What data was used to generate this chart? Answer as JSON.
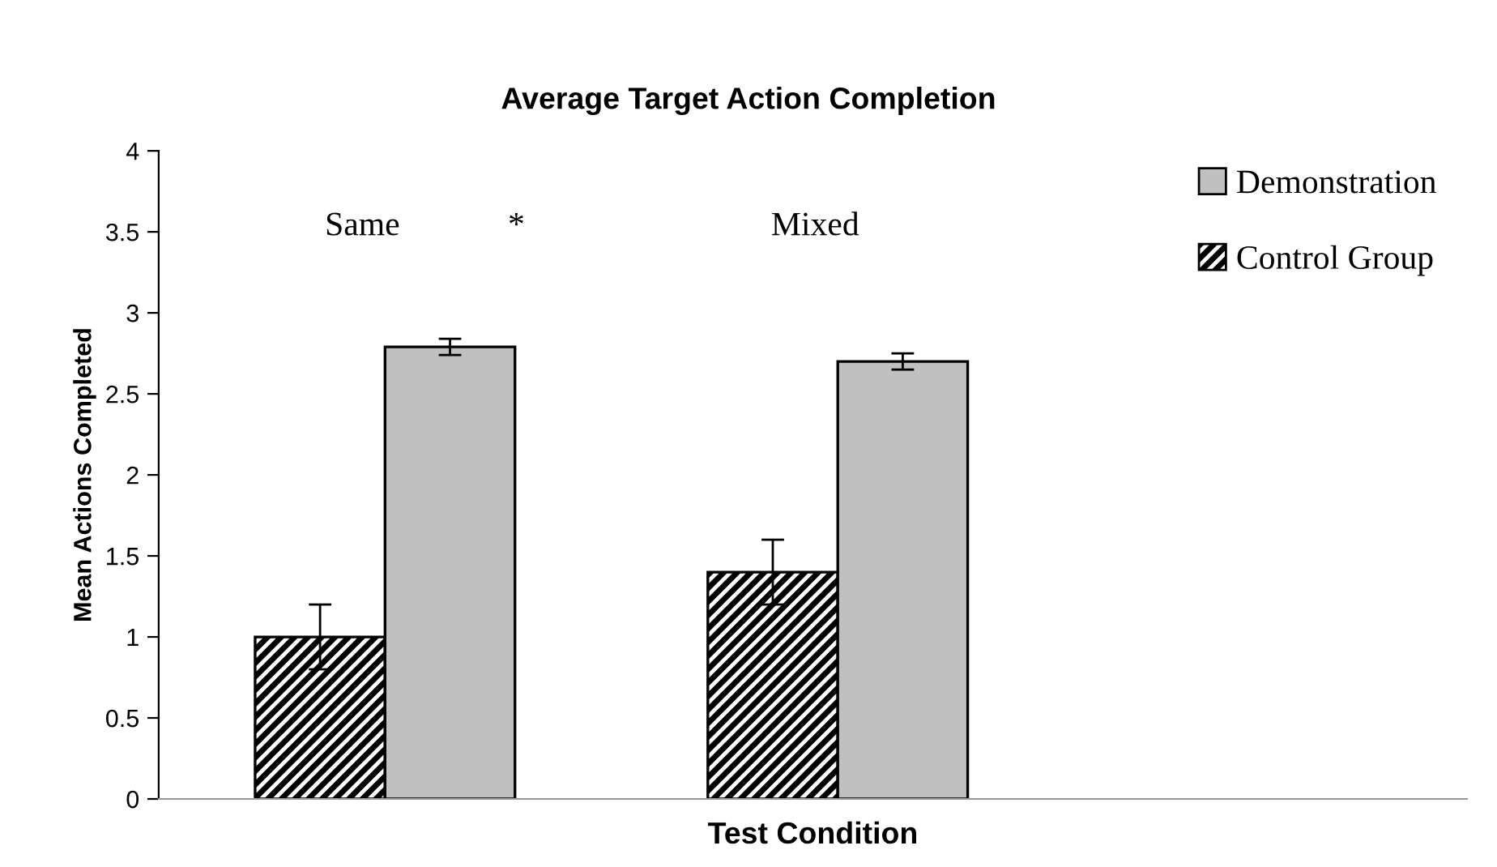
{
  "chart_data": {
    "type": "bar",
    "title": "Average Target Action Completion",
    "xlabel": "Test Condition",
    "ylabel": "Mean Actions Completed",
    "categories": [
      "Same",
      "Mixed"
    ],
    "series": [
      {
        "name": "Control Group",
        "color": "#000000",
        "values": [
          1.0,
          1.4
        ],
        "errors": [
          0.2,
          0.2
        ]
      },
      {
        "name": "Demonstration",
        "color": "#c0c0c0",
        "values": [
          2.79,
          2.7
        ],
        "errors": [
          0.05,
          0.05
        ]
      }
    ],
    "annotations": [
      "*"
    ],
    "ylim": [
      0,
      4
    ],
    "yticks": [
      0,
      0.5,
      1,
      1.5,
      2,
      2.5,
      3,
      3.5,
      4
    ],
    "grid": false,
    "legend": "top right"
  }
}
